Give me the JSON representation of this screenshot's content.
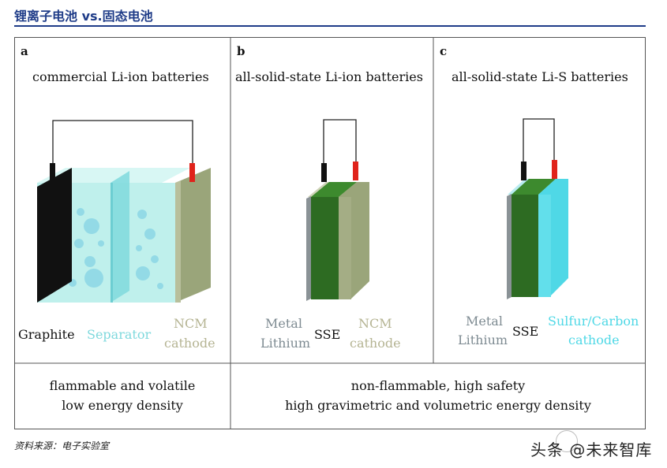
{
  "header": {
    "title": "锂离子电池 vs.固态电池"
  },
  "panels": [
    {
      "letter": "a",
      "title": "commercial Li-ion batteries",
      "labels": {
        "left": "Graphite",
        "middle": "Separator",
        "right_line1": "NCM",
        "right_line2": "cathode"
      }
    },
    {
      "letter": "b",
      "title": "all-solid-state Li-ion batteries",
      "labels": {
        "left_line1": "Metal",
        "left_line2": "Lithium",
        "middle": "SSE",
        "right_line1": "NCM",
        "right_line2": "cathode"
      }
    },
    {
      "letter": "c",
      "title": "all-solid-state Li-S batteries",
      "labels": {
        "left_line1": "Metal",
        "left_line2": "Lithium",
        "middle": "SSE",
        "right_line1": "Sulfur/Carbon",
        "right_line2": "cathode"
      }
    }
  ],
  "summary": {
    "left_line1": "flammable and volatile",
    "left_line2": "low energy density",
    "right_line1": "non-flammable, high safety",
    "right_line2": "high gravimetric and volumetric energy density"
  },
  "source": "资料来源：电子实验室",
  "watermark": "头条 @未来智库",
  "colors": {
    "graphite": "#111111",
    "electrolyte": "#bff0ec",
    "separator_text": "#7fd9dd",
    "ncm": "#9aa57a",
    "ncm_text": "#b5b493",
    "sse": "#2d6b22",
    "lithium": "#8a9296",
    "sulfur": "#4fd8e6",
    "terminal_red": "#e0231b",
    "header_blue": "#1f3c88"
  }
}
